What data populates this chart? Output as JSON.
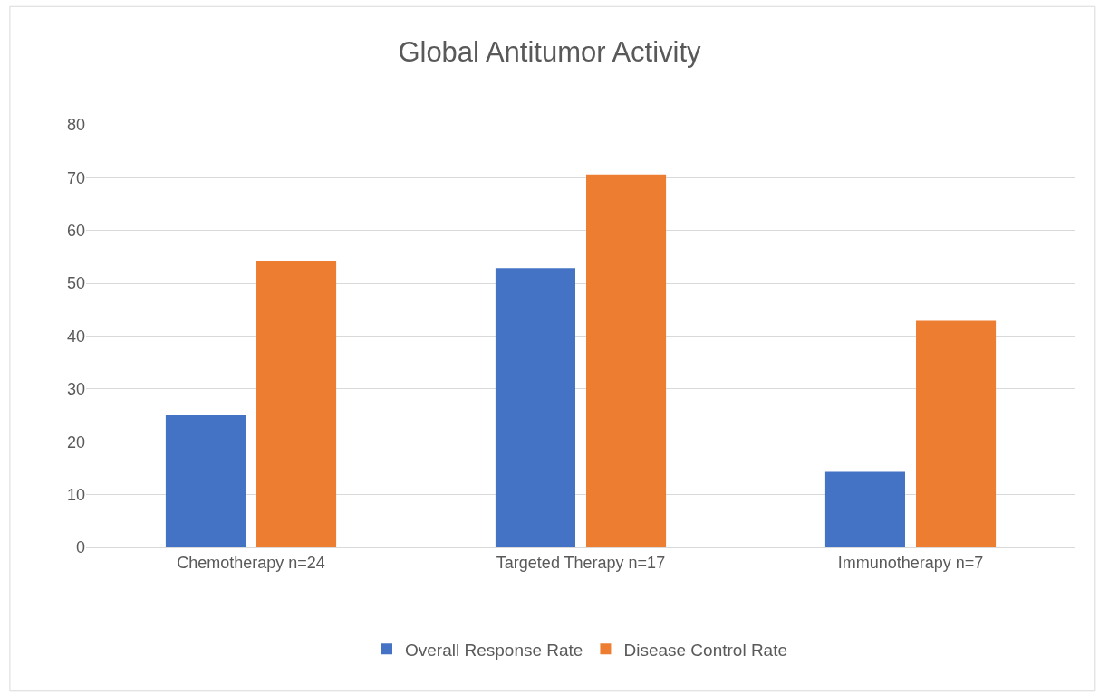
{
  "chart_data": {
    "type": "bar",
    "title": "Global Antitumor Activity",
    "categories": [
      "Chemotherapy n=24",
      "Targeted Therapy n=17",
      "Immunotherapy n=7"
    ],
    "series": [
      {
        "name": "Overall Response Rate",
        "color": "#4472c4",
        "values": [
          25,
          52.9,
          14.3
        ]
      },
      {
        "name": "Disease Control Rate",
        "color": "#ed7d31",
        "values": [
          54.2,
          70.6,
          42.9
        ]
      }
    ],
    "ylim": [
      0,
      80
    ],
    "yticks": [
      0,
      10,
      20,
      30,
      40,
      50,
      60,
      70,
      80
    ],
    "grid": "y",
    "legend": "bottom"
  }
}
